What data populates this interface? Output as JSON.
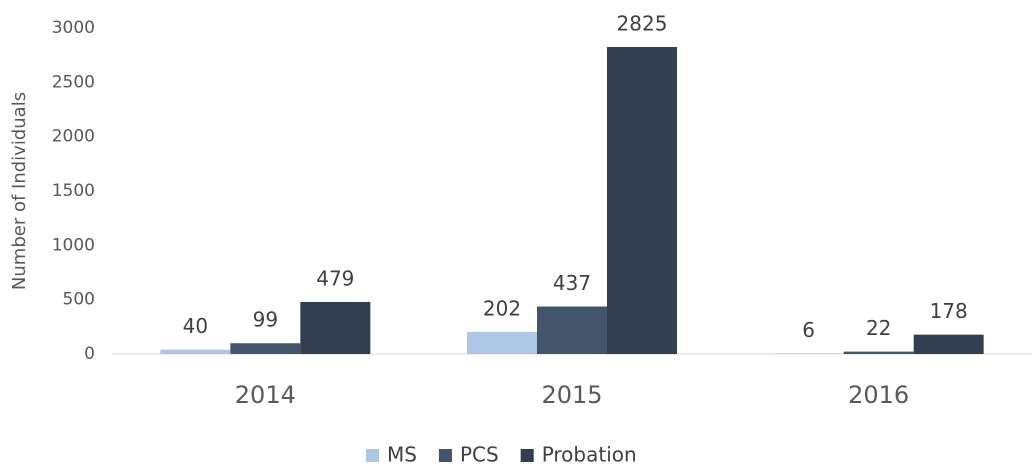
{
  "chart_data": {
    "type": "bar",
    "y_label": "Number of Individuals",
    "categories": [
      "2014",
      "2015",
      "2016"
    ],
    "series": [
      {
        "name": "MS",
        "color": "#adc6e5",
        "values": [
          40,
          202,
          6
        ]
      },
      {
        "name": "PCS",
        "color": "#44546a",
        "values": [
          99,
          437,
          22
        ]
      },
      {
        "name": "Probation",
        "color": "#333f50",
        "values": [
          479,
          2825,
          178
        ]
      }
    ],
    "ylim": [
      0,
      3000
    ],
    "yticks": [
      0,
      500,
      1000,
      1500,
      2000,
      2500,
      3000
    ],
    "grid": false,
    "legend": "bottom"
  }
}
